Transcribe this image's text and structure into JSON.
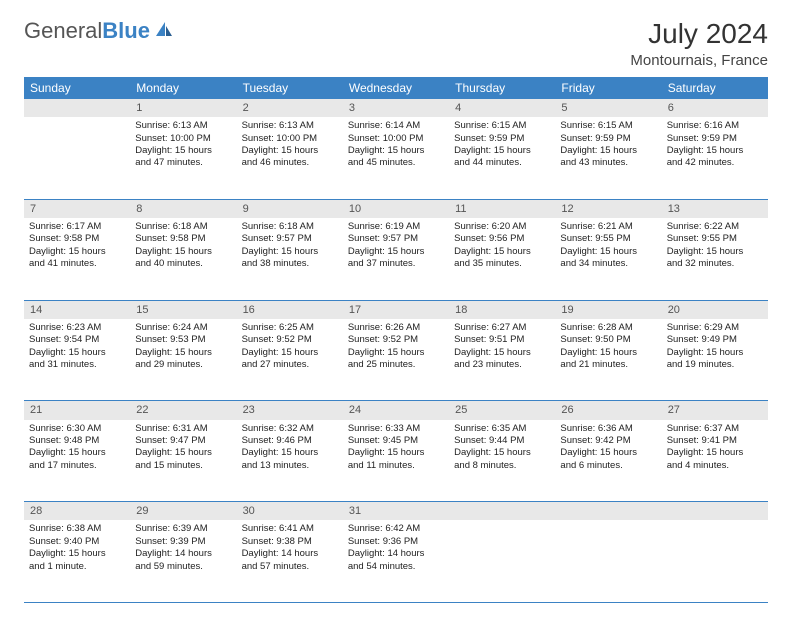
{
  "logo": {
    "text1": "General",
    "text2": "Blue"
  },
  "title": "July 2024",
  "location": "Montournais, France",
  "colors": {
    "header_bg": "#3b82c4",
    "header_text": "#ffffff",
    "daynum_bg": "#e8e8e8",
    "daynum_text": "#555555",
    "border": "#3b82c4",
    "logo_gray": "#555555",
    "logo_blue": "#3b82c4"
  },
  "dayNames": [
    "Sunday",
    "Monday",
    "Tuesday",
    "Wednesday",
    "Thursday",
    "Friday",
    "Saturday"
  ],
  "weeks": [
    {
      "nums": [
        "",
        "1",
        "2",
        "3",
        "4",
        "5",
        "6"
      ],
      "cells": [
        [],
        [
          "Sunrise: 6:13 AM",
          "Sunset: 10:00 PM",
          "Daylight: 15 hours",
          "and 47 minutes."
        ],
        [
          "Sunrise: 6:13 AM",
          "Sunset: 10:00 PM",
          "Daylight: 15 hours",
          "and 46 minutes."
        ],
        [
          "Sunrise: 6:14 AM",
          "Sunset: 10:00 PM",
          "Daylight: 15 hours",
          "and 45 minutes."
        ],
        [
          "Sunrise: 6:15 AM",
          "Sunset: 9:59 PM",
          "Daylight: 15 hours",
          "and 44 minutes."
        ],
        [
          "Sunrise: 6:15 AM",
          "Sunset: 9:59 PM",
          "Daylight: 15 hours",
          "and 43 minutes."
        ],
        [
          "Sunrise: 6:16 AM",
          "Sunset: 9:59 PM",
          "Daylight: 15 hours",
          "and 42 minutes."
        ]
      ]
    },
    {
      "nums": [
        "7",
        "8",
        "9",
        "10",
        "11",
        "12",
        "13"
      ],
      "cells": [
        [
          "Sunrise: 6:17 AM",
          "Sunset: 9:58 PM",
          "Daylight: 15 hours",
          "and 41 minutes."
        ],
        [
          "Sunrise: 6:18 AM",
          "Sunset: 9:58 PM",
          "Daylight: 15 hours",
          "and 40 minutes."
        ],
        [
          "Sunrise: 6:18 AM",
          "Sunset: 9:57 PM",
          "Daylight: 15 hours",
          "and 38 minutes."
        ],
        [
          "Sunrise: 6:19 AM",
          "Sunset: 9:57 PM",
          "Daylight: 15 hours",
          "and 37 minutes."
        ],
        [
          "Sunrise: 6:20 AM",
          "Sunset: 9:56 PM",
          "Daylight: 15 hours",
          "and 35 minutes."
        ],
        [
          "Sunrise: 6:21 AM",
          "Sunset: 9:55 PM",
          "Daylight: 15 hours",
          "and 34 minutes."
        ],
        [
          "Sunrise: 6:22 AM",
          "Sunset: 9:55 PM",
          "Daylight: 15 hours",
          "and 32 minutes."
        ]
      ]
    },
    {
      "nums": [
        "14",
        "15",
        "16",
        "17",
        "18",
        "19",
        "20"
      ],
      "cells": [
        [
          "Sunrise: 6:23 AM",
          "Sunset: 9:54 PM",
          "Daylight: 15 hours",
          "and 31 minutes."
        ],
        [
          "Sunrise: 6:24 AM",
          "Sunset: 9:53 PM",
          "Daylight: 15 hours",
          "and 29 minutes."
        ],
        [
          "Sunrise: 6:25 AM",
          "Sunset: 9:52 PM",
          "Daylight: 15 hours",
          "and 27 minutes."
        ],
        [
          "Sunrise: 6:26 AM",
          "Sunset: 9:52 PM",
          "Daylight: 15 hours",
          "and 25 minutes."
        ],
        [
          "Sunrise: 6:27 AM",
          "Sunset: 9:51 PM",
          "Daylight: 15 hours",
          "and 23 minutes."
        ],
        [
          "Sunrise: 6:28 AM",
          "Sunset: 9:50 PM",
          "Daylight: 15 hours",
          "and 21 minutes."
        ],
        [
          "Sunrise: 6:29 AM",
          "Sunset: 9:49 PM",
          "Daylight: 15 hours",
          "and 19 minutes."
        ]
      ]
    },
    {
      "nums": [
        "21",
        "22",
        "23",
        "24",
        "25",
        "26",
        "27"
      ],
      "cells": [
        [
          "Sunrise: 6:30 AM",
          "Sunset: 9:48 PM",
          "Daylight: 15 hours",
          "and 17 minutes."
        ],
        [
          "Sunrise: 6:31 AM",
          "Sunset: 9:47 PM",
          "Daylight: 15 hours",
          "and 15 minutes."
        ],
        [
          "Sunrise: 6:32 AM",
          "Sunset: 9:46 PM",
          "Daylight: 15 hours",
          "and 13 minutes."
        ],
        [
          "Sunrise: 6:33 AM",
          "Sunset: 9:45 PM",
          "Daylight: 15 hours",
          "and 11 minutes."
        ],
        [
          "Sunrise: 6:35 AM",
          "Sunset: 9:44 PM",
          "Daylight: 15 hours",
          "and 8 minutes."
        ],
        [
          "Sunrise: 6:36 AM",
          "Sunset: 9:42 PM",
          "Daylight: 15 hours",
          "and 6 minutes."
        ],
        [
          "Sunrise: 6:37 AM",
          "Sunset: 9:41 PM",
          "Daylight: 15 hours",
          "and 4 minutes."
        ]
      ]
    },
    {
      "nums": [
        "28",
        "29",
        "30",
        "31",
        "",
        "",
        ""
      ],
      "cells": [
        [
          "Sunrise: 6:38 AM",
          "Sunset: 9:40 PM",
          "Daylight: 15 hours",
          "and 1 minute."
        ],
        [
          "Sunrise: 6:39 AM",
          "Sunset: 9:39 PM",
          "Daylight: 14 hours",
          "and 59 minutes."
        ],
        [
          "Sunrise: 6:41 AM",
          "Sunset: 9:38 PM",
          "Daylight: 14 hours",
          "and 57 minutes."
        ],
        [
          "Sunrise: 6:42 AM",
          "Sunset: 9:36 PM",
          "Daylight: 14 hours",
          "and 54 minutes."
        ],
        [],
        [],
        []
      ]
    }
  ]
}
